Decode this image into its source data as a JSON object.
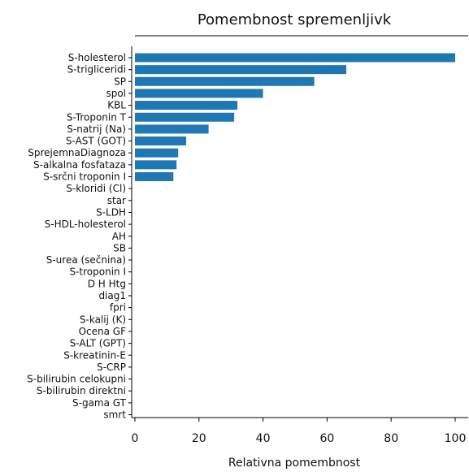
{
  "chart_data": {
    "type": "bar",
    "orientation": "horizontal",
    "title": "Pomembnost spremenljivk",
    "xlabel": "Relativna pomembnost",
    "ylabel": "",
    "xlim": [
      0,
      100
    ],
    "xticks": [
      0,
      20,
      40,
      60,
      80,
      100
    ],
    "grid": false,
    "color": "#1f77b4",
    "categories": [
      "S-holesterol",
      "S-trigliceridi",
      "SP",
      "spol",
      "KBL",
      "S-Troponin T",
      "S-natrij (Na)",
      "S-AST (GOT)",
      "SprejemnaDiagnoza",
      "S-alkalna fosfataza",
      "S-srčni troponin I",
      "S-kloridi (Cl)",
      "star",
      "S-LDH",
      "S-HDL-holesterol",
      "AH",
      "SB",
      "S-urea (sečnina)",
      "S-troponin I",
      "D H Htg",
      "diag1",
      "fpri",
      "S-kalij (K)",
      "Ocena GF",
      "S-ALT (GPT)",
      "S-kreatinin-E",
      "S-CRP",
      "S-bilirubin celokupni",
      "S-bilirubin direktni",
      "S-gama GT",
      "smrt"
    ],
    "values": [
      100,
      66,
      56,
      40,
      32,
      31,
      23,
      16,
      13.5,
      13,
      12,
      0,
      0,
      0,
      0,
      0,
      0,
      0,
      0,
      0,
      0,
      0,
      0,
      0,
      0,
      0,
      0,
      0,
      0,
      0,
      0
    ]
  }
}
